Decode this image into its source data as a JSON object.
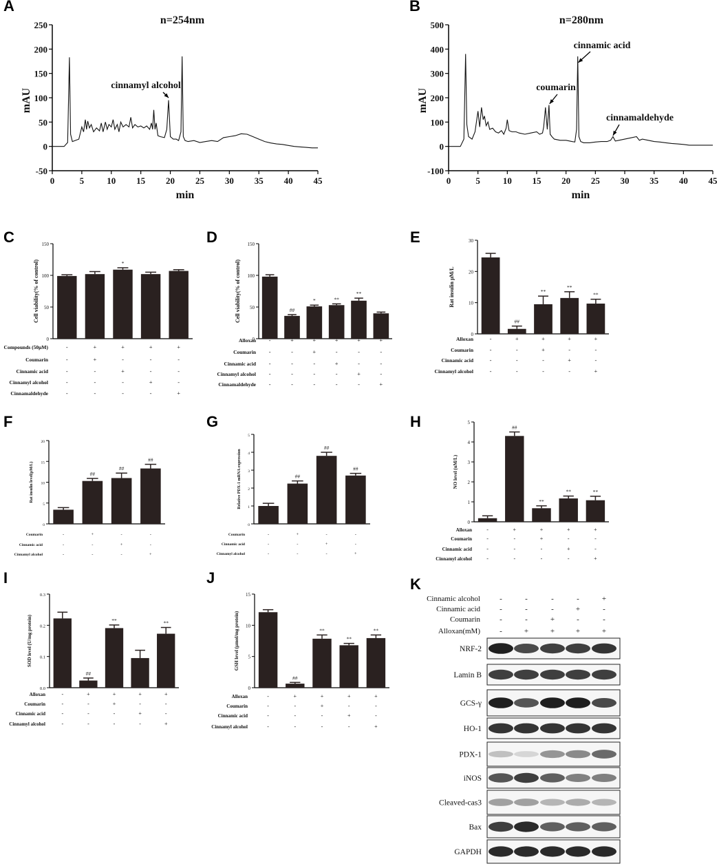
{
  "chart_data": [
    {
      "panel": "A",
      "type": "line",
      "title": "n=254nm",
      "xlabel": "min",
      "ylabel": "mAU",
      "xlim": [
        0,
        45
      ],
      "ylim": [
        -50,
        250
      ],
      "xticks": [
        0,
        5,
        10,
        15,
        20,
        25,
        30,
        35,
        40,
        45
      ],
      "yticks": [
        -50,
        0,
        50,
        100,
        150,
        200,
        250
      ],
      "series": [
        {
          "x": [
            0,
            2,
            2.6,
            2.9,
            3.1,
            3.4,
            4.5,
            5,
            5.3,
            5.6,
            5.8,
            6,
            6.3,
            6.6,
            7,
            7.5,
            8,
            8.3,
            8.6,
            9,
            9.3,
            9.6,
            10,
            10.3,
            10.6,
            11,
            11.3,
            11.6,
            12,
            12.5,
            13,
            13.3,
            13.6,
            14,
            14.5,
            15,
            15.5,
            16,
            16.5,
            16.8,
            17,
            17.2,
            17.4,
            17.6,
            17.9,
            18.3,
            19,
            19.4,
            19.7,
            20,
            20.5,
            21,
            21.4,
            21.8,
            22,
            22.2,
            22.5,
            23,
            24,
            25,
            26,
            27,
            28,
            29,
            30,
            31,
            32,
            33,
            34,
            35,
            36,
            37,
            38,
            39,
            40,
            41,
            42,
            43,
            44,
            45
          ],
          "y": [
            0,
            0,
            8,
            183,
            25,
            10,
            15,
            40,
            30,
            55,
            35,
            52,
            38,
            45,
            30,
            38,
            32,
            48,
            30,
            50,
            35,
            45,
            40,
            55,
            35,
            45,
            30,
            50,
            40,
            45,
            40,
            60,
            38,
            45,
            40,
            42,
            38,
            42,
            35,
            48,
            35,
            75,
            35,
            48,
            22,
            20,
            18,
            35,
            95,
            20,
            15,
            15,
            12,
            30,
            185,
            20,
            12,
            10,
            12,
            8,
            10,
            12,
            10,
            18,
            20,
            22,
            26,
            25,
            20,
            15,
            10,
            7,
            5,
            4,
            2,
            0,
            -1,
            -2,
            -3,
            -3
          ]
        }
      ],
      "annotations": [
        "cinnamyl alcohol"
      ]
    },
    {
      "panel": "B",
      "type": "line",
      "title": "n=280nm",
      "xlabel": "min",
      "ylabel": "mAU",
      "xlim": [
        0,
        45
      ],
      "ylim": [
        -100,
        500
      ],
      "xticks": [
        0,
        5,
        10,
        15,
        20,
        25,
        30,
        35,
        40,
        45
      ],
      "yticks": [
        -100,
        0,
        100,
        200,
        300,
        400,
        500
      ],
      "series": [
        {
          "x": [
            0,
            2,
            2.6,
            2.9,
            3.1,
            3.4,
            4,
            4.5,
            5,
            5.3,
            5.6,
            5.9,
            6.1,
            6.4,
            6.7,
            7,
            7.5,
            8,
            8.5,
            9,
            9.4,
            9.8,
            10,
            10.3,
            10.8,
            11.5,
            12,
            13,
            14,
            15,
            15.5,
            16,
            16.2,
            16.5,
            16.8,
            17.1,
            17.3,
            17.6,
            18,
            19,
            20,
            21,
            21.5,
            21.8,
            22,
            22.2,
            22.5,
            23,
            24,
            25,
            26,
            27,
            27.6,
            28,
            28.4,
            29,
            30,
            31,
            32,
            32.5,
            33,
            34,
            35,
            36,
            37,
            38,
            39,
            40,
            41,
            42,
            43,
            44,
            45
          ],
          "y": [
            0,
            0,
            30,
            380,
            90,
            40,
            30,
            60,
            145,
            80,
            160,
            110,
            125,
            85,
            100,
            70,
            75,
            60,
            55,
            65,
            50,
            75,
            110,
            65,
            60,
            60,
            55,
            50,
            55,
            60,
            50,
            55,
            80,
            160,
            70,
            170,
            50,
            40,
            30,
            25,
            25,
            20,
            18,
            70,
            370,
            40,
            20,
            15,
            15,
            18,
            20,
            20,
            25,
            40,
            22,
            25,
            30,
            35,
            40,
            25,
            30,
            25,
            20,
            18,
            15,
            12,
            10,
            8,
            5,
            5,
            5,
            5,
            5
          ]
        }
      ],
      "annotations": [
        "cinnamic acid",
        "coumarin",
        "cinnamaldehyde"
      ]
    },
    {
      "panel": "C",
      "type": "bar",
      "ylabel": "Cell viability(% of control)",
      "ylim": [
        0,
        150
      ],
      "yticks": [
        0,
        50,
        100,
        150
      ],
      "values": [
        99,
        102,
        109,
        102,
        107
      ],
      "errors": [
        2,
        4,
        3,
        3,
        2
      ],
      "annotations": [
        "",
        "",
        "*",
        "",
        ""
      ],
      "factors": [
        {
          "name": "Compounds (50μM)",
          "signs": [
            "-",
            "+",
            "+",
            "+",
            "+"
          ]
        },
        {
          "name": "Coumarin",
          "signs": [
            "-",
            "+",
            "-",
            "-",
            "-"
          ]
        },
        {
          "name": "Cinnamic acid",
          "signs": [
            "-",
            "-",
            "+",
            "-",
            "-"
          ]
        },
        {
          "name": "Cinnamyl alcohol",
          "signs": [
            "-",
            "-",
            "-",
            "+",
            "-"
          ]
        },
        {
          "name": "Cinnamaldehyde",
          "signs": [
            "-",
            "-",
            "-",
            "-",
            "+"
          ]
        }
      ]
    },
    {
      "panel": "D",
      "type": "bar",
      "ylabel": "Cell viability(% of control)",
      "ylim": [
        0,
        150
      ],
      "yticks": [
        0,
        50,
        100,
        150
      ],
      "values": [
        98,
        36,
        51,
        53,
        60,
        40
      ],
      "errors": [
        3,
        2,
        2,
        2,
        4,
        2
      ],
      "annotations": [
        "",
        "##",
        "*",
        "**",
        "**",
        ""
      ],
      "factors": [
        {
          "name": "Alloxan",
          "signs": [
            "-",
            "+",
            "+",
            "+",
            "+",
            "+"
          ]
        },
        {
          "name": "Coumarin",
          "signs": [
            "-",
            "-",
            "+",
            "-",
            "-",
            "-"
          ]
        },
        {
          "name": "Cinnamic acid",
          "signs": [
            "-",
            "-",
            "-",
            "+",
            "-",
            "-"
          ]
        },
        {
          "name": "Cinnamyl alcohol",
          "signs": [
            "-",
            "-",
            "-",
            "-",
            "+",
            "-"
          ]
        },
        {
          "name": "Cinnamaldehyde",
          "signs": [
            "-",
            "-",
            "-",
            "-",
            "-",
            "+"
          ]
        }
      ]
    },
    {
      "panel": "E",
      "type": "bar",
      "ylabel": "Rat insulin μM/L",
      "ylim": [
        0,
        30
      ],
      "yticks": [
        0,
        10,
        20,
        30
      ],
      "values": [
        24.5,
        1.6,
        9.5,
        11.5,
        9.7
      ],
      "errors": [
        1.3,
        0.9,
        2.6,
        2.0,
        1.4
      ],
      "annotations": [
        "",
        "##",
        "**",
        "**",
        "**"
      ],
      "factors": [
        {
          "name": "Alloxan",
          "signs": [
            "-",
            "+",
            "+",
            "+",
            "+"
          ]
        },
        {
          "name": "Coumarin",
          "signs": [
            "-",
            "-",
            "+",
            "-",
            "-"
          ]
        },
        {
          "name": "Cinnamic acid",
          "signs": [
            "-",
            "-",
            "-",
            "+",
            "-"
          ]
        },
        {
          "name": "Cinnamyl alcohol",
          "signs": [
            "-",
            "-",
            "-",
            "-",
            "+"
          ]
        }
      ]
    },
    {
      "panel": "F",
      "type": "bar",
      "ylabel": "Rat insulin level(μM/L)",
      "ylim": [
        0,
        20
      ],
      "yticks": [
        0,
        5,
        10,
        15,
        20
      ],
      "values": [
        3.4,
        10.3,
        11.0,
        13.3
      ],
      "errors": [
        0.5,
        0.6,
        1.2,
        1.0
      ],
      "annotations": [
        "",
        "##",
        "##",
        "##"
      ],
      "factors": [
        {
          "name": "Coumarin",
          "signs": [
            "-",
            "+",
            "-",
            "-"
          ]
        },
        {
          "name": "Cinnamic acid",
          "signs": [
            "-",
            "-",
            "+",
            "-"
          ]
        },
        {
          "name": "Cinnamyl alcohol",
          "signs": [
            "-",
            "-",
            "-",
            "+"
          ]
        }
      ]
    },
    {
      "panel": "G",
      "type": "bar",
      "ylabel": "Relative PDX-1 mRNA expression",
      "ylim": [
        0,
        5
      ],
      "yticks": [
        0,
        1,
        2,
        3,
        4,
        5
      ],
      "values": [
        1.0,
        2.25,
        3.8,
        2.7
      ],
      "errors": [
        0.15,
        0.15,
        0.2,
        0.12
      ],
      "annotations": [
        "",
        "##",
        "##",
        "##"
      ],
      "factors": [
        {
          "name": "Coumarin",
          "signs": [
            "-",
            "+",
            "-",
            "-"
          ]
        },
        {
          "name": "Cinnamic acid",
          "signs": [
            "-",
            "-",
            "+",
            "-"
          ]
        },
        {
          "name": "Cinnamyl alcohol",
          "signs": [
            "-",
            "-",
            "-",
            "+"
          ]
        }
      ]
    },
    {
      "panel": "H",
      "type": "bar",
      "ylabel": "NO level (uM/L)",
      "ylim": [
        0,
        5
      ],
      "yticks": [
        0,
        1,
        2,
        3,
        4,
        5
      ],
      "values": [
        0.18,
        4.3,
        0.68,
        1.17,
        1.08
      ],
      "errors": [
        0.12,
        0.2,
        0.12,
        0.12,
        0.2
      ],
      "annotations": [
        "",
        "##",
        "**",
        "**",
        "**"
      ],
      "factors": [
        {
          "name": "Alloxan",
          "signs": [
            "-",
            "+",
            "+",
            "+",
            "+"
          ]
        },
        {
          "name": "Coumarin",
          "signs": [
            "-",
            "-",
            "+",
            "-",
            "-"
          ]
        },
        {
          "name": "Cinnamic acid",
          "signs": [
            "-",
            "-",
            "-",
            "+",
            "-"
          ]
        },
        {
          "name": "Cinnamyl alcohol",
          "signs": [
            "-",
            "-",
            "-",
            "-",
            "+"
          ]
        }
      ]
    },
    {
      "panel": "I",
      "type": "bar",
      "ylabel": "SOD level (U/mg protein)",
      "ylim": [
        0,
        0.3
      ],
      "yticks": [
        0.0,
        0.1,
        0.2,
        0.3
      ],
      "ytick_labels": [
        "0.0",
        "0.1",
        "0.2",
        "0.3"
      ],
      "values": [
        0.222,
        0.023,
        0.191,
        0.095,
        0.173
      ],
      "errors": [
        0.02,
        0.008,
        0.01,
        0.025,
        0.02
      ],
      "annotations": [
        "",
        "##",
        "**",
        "",
        "**"
      ],
      "factors": [
        {
          "name": "Alloxan",
          "signs": [
            "-",
            "+",
            "+",
            "+",
            "+"
          ]
        },
        {
          "name": "Coumarin",
          "signs": [
            "-",
            "-",
            "+",
            "-",
            "-"
          ]
        },
        {
          "name": "Cinnamic acid",
          "signs": [
            "-",
            "-",
            "-",
            "+",
            "-"
          ]
        },
        {
          "name": "Cinnamyl alcohol",
          "signs": [
            "-",
            "-",
            "-",
            "-",
            "+"
          ]
        }
      ]
    },
    {
      "panel": "J",
      "type": "bar",
      "ylabel": "GSH level (μmol/mg protein)",
      "ylim": [
        0,
        15
      ],
      "yticks": [
        0,
        5,
        10,
        15
      ],
      "values": [
        12.1,
        0.65,
        7.85,
        6.8,
        7.95
      ],
      "errors": [
        0.4,
        0.2,
        0.6,
        0.3,
        0.5
      ],
      "annotations": [
        "",
        "##",
        "**",
        "**",
        "**"
      ],
      "factors": [
        {
          "name": "Alloxan",
          "signs": [
            "-",
            "+",
            "+",
            "+",
            "+"
          ]
        },
        {
          "name": "Coumarin",
          "signs": [
            "-",
            "-",
            "+",
            "-",
            "-"
          ]
        },
        {
          "name": "Cinnamic acid",
          "signs": [
            "-",
            "-",
            "-",
            "+",
            "-"
          ]
        },
        {
          "name": "Cinnamyl alcohol",
          "signs": [
            "-",
            "-",
            "-",
            "-",
            "+"
          ]
        }
      ]
    }
  ],
  "blot": {
    "panel": "K",
    "factors": [
      {
        "name": "Cinnamic alcohol",
        "signs": [
          "-",
          "-",
          "-",
          "-",
          "+"
        ]
      },
      {
        "name": "Cinnamic acid",
        "signs": [
          "-",
          "-",
          "-",
          "+",
          "-"
        ]
      },
      {
        "name": "Coumarin",
        "signs": [
          "-",
          "-",
          "+",
          "-",
          "-"
        ]
      },
      {
        "name": "Alloxan(mM)",
        "signs": [
          "-",
          "+",
          "+",
          "+",
          "+"
        ]
      }
    ],
    "rows": [
      {
        "name": "NRF-2",
        "intensity": [
          0.95,
          0.75,
          0.8,
          0.8,
          0.85
        ]
      },
      {
        "name": "Lamin B",
        "intensity": [
          0.8,
          0.8,
          0.8,
          0.8,
          0.8
        ]
      },
      {
        "name": "GCS-γ",
        "intensity": [
          0.95,
          0.7,
          0.95,
          0.95,
          0.75
        ]
      },
      {
        "name": "HO-1",
        "intensity": [
          0.85,
          0.85,
          0.85,
          0.85,
          0.85
        ]
      },
      {
        "name": "PDX-1",
        "intensity": [
          0.2,
          0.1,
          0.4,
          0.45,
          0.6
        ]
      },
      {
        "name": "iNOS",
        "intensity": [
          0.7,
          0.8,
          0.65,
          0.5,
          0.5
        ]
      },
      {
        "name": "Cleaved-cas3",
        "intensity": [
          0.35,
          0.35,
          0.25,
          0.3,
          0.25
        ]
      },
      {
        "name": "Bax",
        "intensity": [
          0.8,
          0.9,
          0.65,
          0.65,
          0.65
        ]
      },
      {
        "name": "GAPDH",
        "intensity": [
          0.9,
          0.9,
          0.9,
          0.9,
          0.9
        ]
      }
    ]
  }
}
